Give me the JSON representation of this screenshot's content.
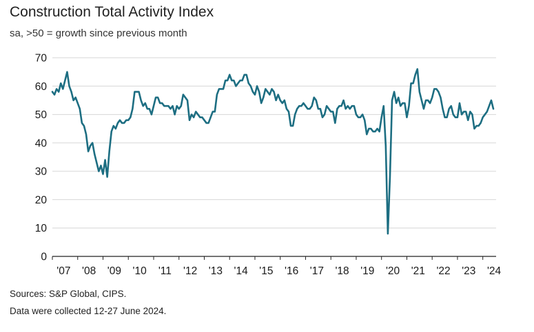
{
  "title": "Construction Total Activity Index",
  "subtitle": "sa, >50 = growth since previous month",
  "sources": "Sources: S&P Global, CIPS.",
  "note": "Data were collected 12-27 June 2024.",
  "chart_data": {
    "type": "line",
    "title": "Construction Total Activity Index",
    "subtitle": "sa, >50 = growth since previous month",
    "xlabel": "",
    "ylabel": "",
    "ylim": [
      0,
      70
    ],
    "yticks": [
      "0",
      "10",
      "20",
      "30",
      "40",
      "50",
      "60",
      "70"
    ],
    "xticks": [
      "'07",
      "'08",
      "'09",
      "'10",
      "'11",
      "'12",
      "'13",
      "'14",
      "'15",
      "'16",
      "'17",
      "'18",
      "'19",
      "'20",
      "'21",
      "'22",
      "'23",
      "'24"
    ],
    "x_range": [
      "2007-01",
      "2024-06"
    ],
    "grid": "horizontal",
    "line_color": "#1d6e82",
    "series": [
      {
        "points": [
          [
            "2007-01",
            58
          ],
          [
            "2007-02",
            57
          ],
          [
            "2007-03",
            59
          ],
          [
            "2007-04",
            58
          ],
          [
            "2007-05",
            61
          ],
          [
            "2007-06",
            59
          ],
          [
            "2007-07",
            62
          ],
          [
            "2007-08",
            65
          ],
          [
            "2007-09",
            60
          ],
          [
            "2007-10",
            58
          ],
          [
            "2007-11",
            55
          ],
          [
            "2007-12",
            56
          ],
          [
            "2008-01",
            54
          ],
          [
            "2008-02",
            52
          ],
          [
            "2008-03",
            47
          ],
          [
            "2008-04",
            46
          ],
          [
            "2008-05",
            43
          ],
          [
            "2008-06",
            37
          ],
          [
            "2008-07",
            39
          ],
          [
            "2008-08",
            40
          ],
          [
            "2008-09",
            36
          ],
          [
            "2008-10",
            33
          ],
          [
            "2008-11",
            30
          ],
          [
            "2008-12",
            32
          ],
          [
            "2009-01",
            29
          ],
          [
            "2009-02",
            34
          ],
          [
            "2009-03",
            28
          ],
          [
            "2009-04",
            37
          ],
          [
            "2009-05",
            44
          ],
          [
            "2009-06",
            46
          ],
          [
            "2009-07",
            45
          ],
          [
            "2009-08",
            47
          ],
          [
            "2009-09",
            48
          ],
          [
            "2009-10",
            47
          ],
          [
            "2009-11",
            47
          ],
          [
            "2009-12",
            48
          ],
          [
            "2010-01",
            48
          ],
          [
            "2010-02",
            49
          ],
          [
            "2010-03",
            52
          ],
          [
            "2010-04",
            58
          ],
          [
            "2010-05",
            58
          ],
          [
            "2010-06",
            58
          ],
          [
            "2010-07",
            55
          ],
          [
            "2010-08",
            53
          ],
          [
            "2010-09",
            54
          ],
          [
            "2010-10",
            52
          ],
          [
            "2010-11",
            52
          ],
          [
            "2010-12",
            50
          ],
          [
            "2011-01",
            53
          ],
          [
            "2011-02",
            56
          ],
          [
            "2011-03",
            56
          ],
          [
            "2011-04",
            54
          ],
          [
            "2011-05",
            54
          ],
          [
            "2011-06",
            53
          ],
          [
            "2011-07",
            53
          ],
          [
            "2011-08",
            53
          ],
          [
            "2011-09",
            52
          ],
          [
            "2011-10",
            53
          ],
          [
            "2011-11",
            50
          ],
          [
            "2011-12",
            53
          ],
          [
            "2012-01",
            52
          ],
          [
            "2012-02",
            53
          ],
          [
            "2012-03",
            57
          ],
          [
            "2012-04",
            56
          ],
          [
            "2012-05",
            55
          ],
          [
            "2012-06",
            48
          ],
          [
            "2012-07",
            50
          ],
          [
            "2012-08",
            49
          ],
          [
            "2012-09",
            51
          ],
          [
            "2012-10",
            50
          ],
          [
            "2012-11",
            49
          ],
          [
            "2012-12",
            49
          ],
          [
            "2013-01",
            48
          ],
          [
            "2013-02",
            47
          ],
          [
            "2013-03",
            47
          ],
          [
            "2013-04",
            49
          ],
          [
            "2013-05",
            51
          ],
          [
            "2013-06",
            51
          ],
          [
            "2013-07",
            57
          ],
          [
            "2013-08",
            59
          ],
          [
            "2013-09",
            59
          ],
          [
            "2013-10",
            59
          ],
          [
            "2013-11",
            62
          ],
          [
            "2013-12",
            62
          ],
          [
            "2014-01",
            64
          ],
          [
            "2014-02",
            62
          ],
          [
            "2014-03",
            62
          ],
          [
            "2014-04",
            60
          ],
          [
            "2014-05",
            61
          ],
          [
            "2014-06",
            62
          ],
          [
            "2014-07",
            62
          ],
          [
            "2014-08",
            64
          ],
          [
            "2014-09",
            64
          ],
          [
            "2014-10",
            61
          ],
          [
            "2014-11",
            60
          ],
          [
            "2014-12",
            58
          ],
          [
            "2015-01",
            57
          ],
          [
            "2015-02",
            60
          ],
          [
            "2015-03",
            58
          ],
          [
            "2015-04",
            54
          ],
          [
            "2015-05",
            56
          ],
          [
            "2015-06",
            59
          ],
          [
            "2015-07",
            58
          ],
          [
            "2015-08",
            57
          ],
          [
            "2015-09",
            59
          ],
          [
            "2015-10",
            58
          ],
          [
            "2015-11",
            55
          ],
          [
            "2015-12",
            57
          ],
          [
            "2016-01",
            55
          ],
          [
            "2016-02",
            54
          ],
          [
            "2016-03",
            55
          ],
          [
            "2016-04",
            52
          ],
          [
            "2016-05",
            51
          ],
          [
            "2016-06",
            46
          ],
          [
            "2016-07",
            46
          ],
          [
            "2016-08",
            50
          ],
          [
            "2016-09",
            52
          ],
          [
            "2016-10",
            53
          ],
          [
            "2016-11",
            53
          ],
          [
            "2016-12",
            54
          ],
          [
            "2017-01",
            53
          ],
          [
            "2017-02",
            52
          ],
          [
            "2017-03",
            52
          ],
          [
            "2017-04",
            53
          ],
          [
            "2017-05",
            56
          ],
          [
            "2017-06",
            55
          ],
          [
            "2017-07",
            52
          ],
          [
            "2017-08",
            52
          ],
          [
            "2017-09",
            49
          ],
          [
            "2017-10",
            50
          ],
          [
            "2017-11",
            53
          ],
          [
            "2017-12",
            52
          ],
          [
            "2018-01",
            51
          ],
          [
            "2018-02",
            51
          ],
          [
            "2018-03",
            47
          ],
          [
            "2018-04",
            52
          ],
          [
            "2018-05",
            53
          ],
          [
            "2018-06",
            53
          ],
          [
            "2018-07",
            55
          ],
          [
            "2018-08",
            52
          ],
          [
            "2018-09",
            53
          ],
          [
            "2018-10",
            52
          ],
          [
            "2018-11",
            53
          ],
          [
            "2018-12",
            53
          ],
          [
            "2019-01",
            50
          ],
          [
            "2019-02",
            49
          ],
          [
            "2019-03",
            49
          ],
          [
            "2019-04",
            50
          ],
          [
            "2019-05",
            48
          ],
          [
            "2019-06",
            43
          ],
          [
            "2019-07",
            45
          ],
          [
            "2019-08",
            45
          ],
          [
            "2019-09",
            44
          ],
          [
            "2019-10",
            44
          ],
          [
            "2019-11",
            45
          ],
          [
            "2019-12",
            44
          ],
          [
            "2020-01",
            49
          ],
          [
            "2020-02",
            53
          ],
          [
            "2020-03",
            39
          ],
          [
            "2020-04",
            8
          ],
          [
            "2020-05",
            28
          ],
          [
            "2020-06",
            55
          ],
          [
            "2020-07",
            58
          ],
          [
            "2020-08",
            54
          ],
          [
            "2020-09",
            56
          ],
          [
            "2020-10",
            53
          ],
          [
            "2020-11",
            54
          ],
          [
            "2020-12",
            54
          ],
          [
            "2021-01",
            49
          ],
          [
            "2021-02",
            53
          ],
          [
            "2021-03",
            61
          ],
          [
            "2021-04",
            61
          ],
          [
            "2021-05",
            64
          ],
          [
            "2021-06",
            66
          ],
          [
            "2021-07",
            58
          ],
          [
            "2021-08",
            55
          ],
          [
            "2021-09",
            52
          ],
          [
            "2021-10",
            55
          ],
          [
            "2021-11",
            55
          ],
          [
            "2021-12",
            54
          ],
          [
            "2022-01",
            56
          ],
          [
            "2022-02",
            59
          ],
          [
            "2022-03",
            59
          ],
          [
            "2022-04",
            58
          ],
          [
            "2022-05",
            56
          ],
          [
            "2022-06",
            52
          ],
          [
            "2022-07",
            49
          ],
          [
            "2022-08",
            49
          ],
          [
            "2022-09",
            52
          ],
          [
            "2022-10",
            53
          ],
          [
            "2022-11",
            50
          ],
          [
            "2022-12",
            49
          ],
          [
            "2023-01",
            49
          ],
          [
            "2023-02",
            54
          ],
          [
            "2023-03",
            50
          ],
          [
            "2023-04",
            51
          ],
          [
            "2023-05",
            51
          ],
          [
            "2023-06",
            48
          ],
          [
            "2023-07",
            51
          ],
          [
            "2023-08",
            50
          ],
          [
            "2023-09",
            45
          ],
          [
            "2023-10",
            46
          ],
          [
            "2023-11",
            46
          ],
          [
            "2023-12",
            47
          ],
          [
            "2024-01",
            49
          ],
          [
            "2024-02",
            50
          ],
          [
            "2024-03",
            51
          ],
          [
            "2024-04",
            53
          ],
          [
            "2024-05",
            55
          ],
          [
            "2024-06",
            52
          ]
        ]
      }
    ]
  }
}
